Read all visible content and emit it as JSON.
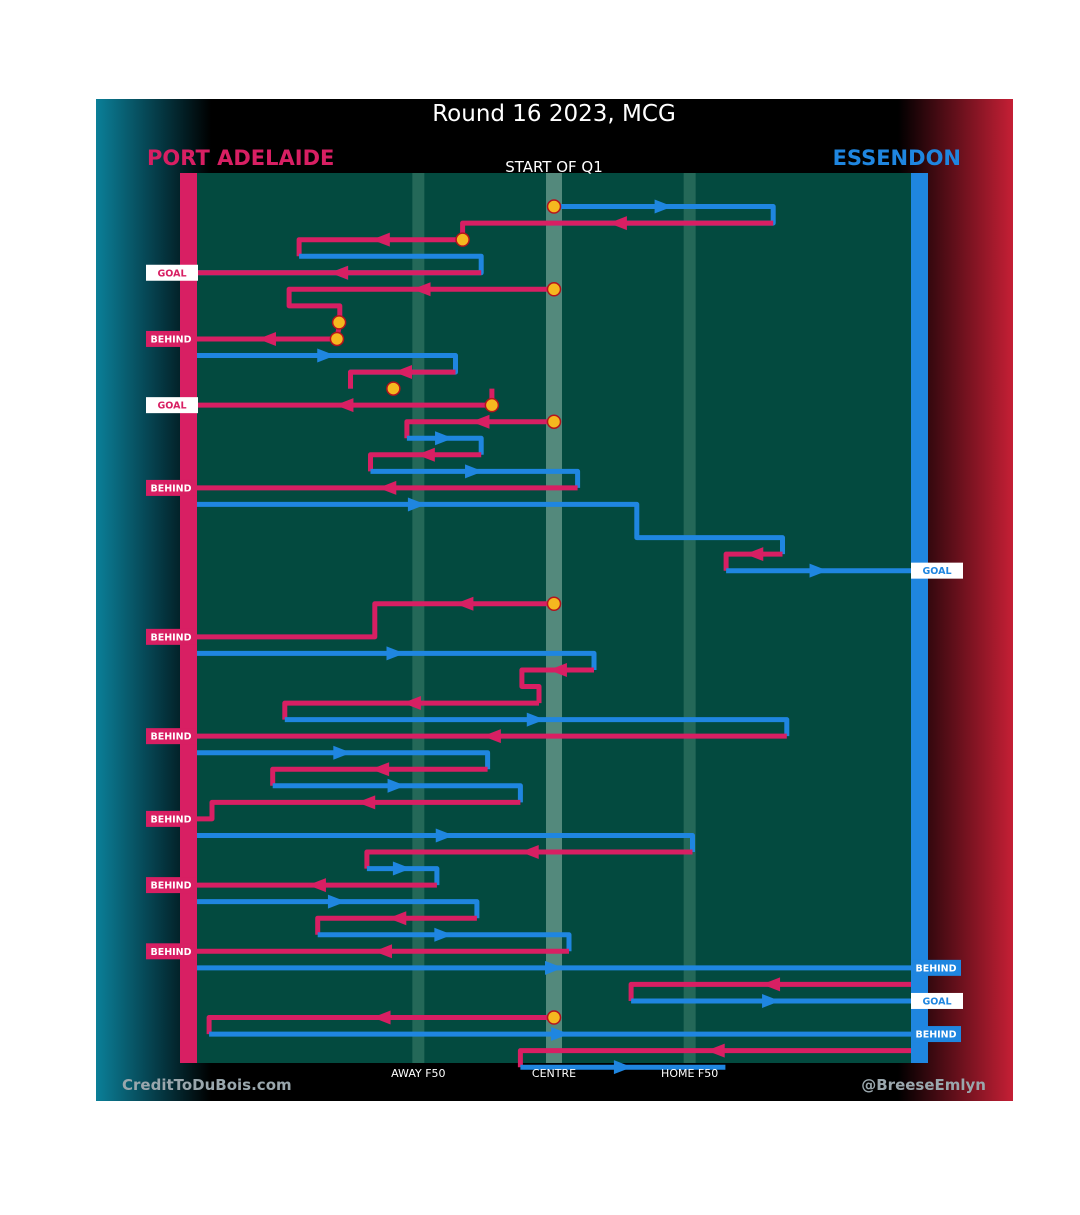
{
  "chart_data": {
    "type": "line",
    "title": "Round 16 2023, MCG",
    "subtitle": "START OF Q1",
    "teams": {
      "left": {
        "name": "PORT ADELAIDE",
        "color": "#d81f63"
      },
      "right": {
        "name": "ESSENDON",
        "color": "#1f86e0"
      }
    },
    "x_axis": {
      "range": [
        0,
        100
      ],
      "ticks": [
        {
          "label": "AWAY F50",
          "value": 31
        },
        {
          "label": "CENTRE",
          "value": 50
        },
        {
          "label": "HOME F50",
          "value": 69
        }
      ]
    },
    "footer": {
      "left": "CreditToDuBois.com",
      "right": "@BreeseEmlyn"
    },
    "colors": {
      "background": "#034a3f",
      "port": "#d81f63",
      "essendon": "#1f86e0",
      "stoppage_marker": "#f5b81f",
      "frame": "#000000"
    },
    "chains": [
      {
        "team": "essendon",
        "row": 1,
        "points": [
          [
            50,
            1
          ],
          [
            80.7,
            1
          ],
          [
            80.7,
            2
          ],
          [
            50,
            2
          ]
        ],
        "end": "turnover",
        "start": "centre"
      },
      {
        "team": "port",
        "row": 2,
        "points": [
          [
            80.7,
            2
          ],
          [
            37.2,
            2
          ],
          [
            37.2,
            3
          ]
        ],
        "end": "turnover"
      },
      {
        "team": "port",
        "row": 3,
        "points": [
          [
            37.2,
            3
          ],
          [
            14.3,
            3
          ],
          [
            14.3,
            4
          ]
        ],
        "end": "turnover",
        "start": "stoppage"
      },
      {
        "team": "essendon",
        "row": 4,
        "points": [
          [
            14.3,
            4
          ],
          [
            39.8,
            4
          ],
          [
            39.8,
            5
          ],
          [
            0,
            5
          ]
        ],
        "end": "turnover"
      },
      {
        "team": "port",
        "row": 5,
        "points": [
          [
            39.8,
            5
          ],
          [
            0,
            5
          ]
        ],
        "end": "goal"
      },
      {
        "team": "port",
        "row": 6,
        "points": [
          [
            50,
            6
          ],
          [
            12.9,
            6
          ],
          [
            12.9,
            7
          ],
          [
            20,
            7
          ],
          [
            20,
            8
          ]
        ],
        "end": "turnover",
        "start": "centre"
      },
      {
        "team": "port",
        "row": 8,
        "points": [
          [
            20,
            8
          ],
          [
            19.6,
            9
          ],
          [
            0,
            9
          ]
        ],
        "end": "behind",
        "start": "stoppage"
      },
      {
        "team": "essendon",
        "row": 10,
        "points": [
          [
            0,
            10
          ],
          [
            36.2,
            10
          ],
          [
            36.2,
            11
          ],
          [
            21.5,
            11
          ],
          [
            21.5,
            12
          ]
        ],
        "end": "turnover"
      },
      {
        "team": "port",
        "row": 11,
        "points": [
          [
            36.2,
            11
          ],
          [
            21.5,
            11
          ],
          [
            21.5,
            12
          ]
        ],
        "end": "turnover"
      },
      {
        "team": "port",
        "row": 12,
        "points": [
          [
            41.3,
            12
          ],
          [
            41.3,
            13
          ],
          [
            0,
            13
          ]
        ],
        "end": "goal",
        "start": "stoppage"
      },
      {
        "team": "port",
        "row": 14,
        "points": [
          [
            50,
            14
          ],
          [
            29.4,
            14
          ],
          [
            29.4,
            15
          ]
        ],
        "end": "turnover",
        "start": "centre"
      },
      {
        "team": "essendon",
        "row": 15,
        "points": [
          [
            29.4,
            15
          ],
          [
            39.8,
            15
          ],
          [
            39.8,
            16
          ]
        ],
        "end": "turnover"
      },
      {
        "team": "port",
        "row": 16,
        "points": [
          [
            39.8,
            16
          ],
          [
            24.3,
            16
          ],
          [
            24.3,
            17
          ]
        ],
        "end": "turnover"
      },
      {
        "team": "essendon",
        "row": 17,
        "points": [
          [
            24.3,
            17
          ],
          [
            53.3,
            17
          ],
          [
            53.3,
            18
          ]
        ],
        "end": "turnover"
      },
      {
        "team": "port",
        "row": 18,
        "points": [
          [
            53.3,
            18
          ],
          [
            0,
            18
          ]
        ],
        "end": "behind"
      },
      {
        "team": "essendon",
        "row": 19,
        "points": [
          [
            0,
            19
          ],
          [
            61.6,
            19
          ],
          [
            61.6,
            21
          ],
          [
            82,
            21
          ],
          [
            82,
            22
          ]
        ],
        "end": "turnover"
      },
      {
        "team": "port",
        "row": 22,
        "points": [
          [
            82,
            22
          ],
          [
            74.1,
            22
          ],
          [
            74.1,
            23
          ]
        ],
        "end": "turnover"
      },
      {
        "team": "essendon",
        "row": 23,
        "points": [
          [
            74.1,
            23
          ],
          [
            100,
            23
          ]
        ],
        "end": "goal"
      },
      {
        "team": "port",
        "row": 25,
        "points": [
          [
            50,
            25
          ],
          [
            24.9,
            25
          ],
          [
            24.9,
            27
          ],
          [
            0,
            27
          ]
        ],
        "end": "behind",
        "start": "centre"
      },
      {
        "team": "essendon",
        "row": 28,
        "points": [
          [
            0,
            28
          ],
          [
            55.6,
            28
          ],
          [
            55.6,
            29
          ]
        ],
        "end": "turnover"
      },
      {
        "team": "port",
        "row": 29,
        "points": [
          [
            55.6,
            29
          ],
          [
            45.5,
            29
          ],
          [
            45.5,
            30
          ],
          [
            47.9,
            30
          ],
          [
            47.9,
            31
          ]
        ],
        "end": "turnover"
      },
      {
        "team": "port",
        "row": 31,
        "points": [
          [
            47.9,
            31
          ],
          [
            12.3,
            31
          ],
          [
            12.3,
            32
          ]
        ],
        "end": "turnover"
      },
      {
        "team": "essendon",
        "row": 32,
        "points": [
          [
            12.3,
            32
          ],
          [
            82.6,
            32
          ],
          [
            82.6,
            33
          ]
        ],
        "end": "turnover"
      },
      {
        "team": "port",
        "row": 33,
        "points": [
          [
            82.6,
            33
          ],
          [
            0,
            33
          ]
        ],
        "end": "behind"
      },
      {
        "team": "essendon",
        "row": 34,
        "points": [
          [
            0,
            34
          ],
          [
            40.7,
            34
          ],
          [
            40.7,
            35
          ]
        ],
        "end": "turnover"
      },
      {
        "team": "port",
        "row": 35,
        "points": [
          [
            40.7,
            35
          ],
          [
            10.6,
            35
          ],
          [
            10.6,
            36
          ]
        ],
        "end": "turnover"
      },
      {
        "team": "essendon",
        "row": 36,
        "points": [
          [
            10.6,
            36
          ],
          [
            45.3,
            36
          ],
          [
            45.3,
            37
          ]
        ],
        "end": "turnover"
      },
      {
        "team": "port",
        "row": 37,
        "points": [
          [
            45.3,
            37
          ],
          [
            2.1,
            37
          ],
          [
            2.1,
            38
          ],
          [
            0,
            38
          ]
        ],
        "end": "behind"
      },
      {
        "team": "essendon",
        "row": 39,
        "points": [
          [
            0,
            39
          ],
          [
            69.4,
            39
          ],
          [
            69.4,
            40
          ]
        ],
        "end": "turnover"
      },
      {
        "team": "port",
        "row": 40,
        "points": [
          [
            69.4,
            40
          ],
          [
            23.8,
            40
          ],
          [
            23.8,
            41
          ]
        ],
        "end": "turnover"
      },
      {
        "team": "essendon",
        "row": 41,
        "points": [
          [
            23.8,
            41
          ],
          [
            33.6,
            41
          ],
          [
            33.6,
            42
          ]
        ],
        "end": "turnover"
      },
      {
        "team": "port",
        "row": 42,
        "points": [
          [
            33.6,
            42
          ],
          [
            0,
            42
          ]
        ],
        "end": "behind"
      },
      {
        "team": "essendon",
        "row": 43,
        "points": [
          [
            0,
            43
          ],
          [
            39.2,
            43
          ],
          [
            39.2,
            44
          ]
        ],
        "end": "turnover"
      },
      {
        "team": "port",
        "row": 44,
        "points": [
          [
            39.2,
            44
          ],
          [
            16.9,
            44
          ],
          [
            16.9,
            45
          ]
        ],
        "end": "turnover"
      },
      {
        "team": "essendon",
        "row": 45,
        "points": [
          [
            16.9,
            45
          ],
          [
            52.1,
            45
          ],
          [
            52.1,
            46
          ]
        ],
        "end": "turnover"
      },
      {
        "team": "port",
        "row": 46,
        "points": [
          [
            52.1,
            46
          ],
          [
            0,
            46
          ]
        ],
        "end": "behind"
      },
      {
        "team": "essendon",
        "row": 47,
        "points": [
          [
            0,
            47
          ],
          [
            100,
            47
          ]
        ],
        "end": "behind"
      },
      {
        "team": "port",
        "row": 48,
        "points": [
          [
            100,
            48
          ],
          [
            60.8,
            48
          ],
          [
            60.8,
            49
          ]
        ],
        "end": "turnover"
      },
      {
        "team": "essendon",
        "row": 49,
        "points": [
          [
            60.8,
            49
          ],
          [
            100,
            49
          ]
        ],
        "end": "goal"
      },
      {
        "team": "port",
        "row": 50,
        "points": [
          [
            50,
            50
          ],
          [
            1.7,
            50
          ],
          [
            1.7,
            51
          ]
        ],
        "end": "turnover",
        "start": "centre"
      },
      {
        "team": "essendon",
        "row": 51,
        "points": [
          [
            1.7,
            51
          ],
          [
            100,
            51
          ]
        ],
        "end": "behind"
      },
      {
        "team": "port",
        "row": 52,
        "points": [
          [
            100,
            52
          ],
          [
            45.3,
            52
          ],
          [
            45.3,
            53
          ]
        ],
        "end": "turnover"
      },
      {
        "team": "essendon",
        "row": 53,
        "points": [
          [
            45.3,
            53
          ],
          [
            74,
            53
          ]
        ],
        "end": "turnover"
      }
    ],
    "stoppages": [
      {
        "x": 50,
        "row": 1
      },
      {
        "x": 37.2,
        "row": 3
      },
      {
        "x": 50,
        "row": 6
      },
      {
        "x": 19.9,
        "row": 8
      },
      {
        "x": 19.6,
        "row": 9
      },
      {
        "x": 27.5,
        "row": 12
      },
      {
        "x": 41.3,
        "row": 13
      },
      {
        "x": 50,
        "row": 14
      },
      {
        "x": 50,
        "row": 25
      },
      {
        "x": 50,
        "row": 50
      }
    ],
    "score_labels": {
      "goal": "GOAL",
      "behind": "BEHIND"
    },
    "labels_left": [
      {
        "text": "GOAL",
        "row": 5
      },
      {
        "text": "BEHIND",
        "row": 9
      },
      {
        "text": "GOAL",
        "row": 13
      },
      {
        "text": "BEHIND",
        "row": 18
      },
      {
        "text": "BEHIND",
        "row": 27
      },
      {
        "text": "BEHIND",
        "row": 33
      },
      {
        "text": "BEHIND",
        "row": 38
      },
      {
        "text": "BEHIND",
        "row": 42
      },
      {
        "text": "BEHIND",
        "row": 46
      }
    ],
    "labels_right": [
      {
        "text": "GOAL",
        "row": 23
      },
      {
        "text": "BEHIND",
        "row": 47
      },
      {
        "text": "GOAL",
        "row": 49
      },
      {
        "text": "BEHIND",
        "row": 51
      }
    ]
  }
}
